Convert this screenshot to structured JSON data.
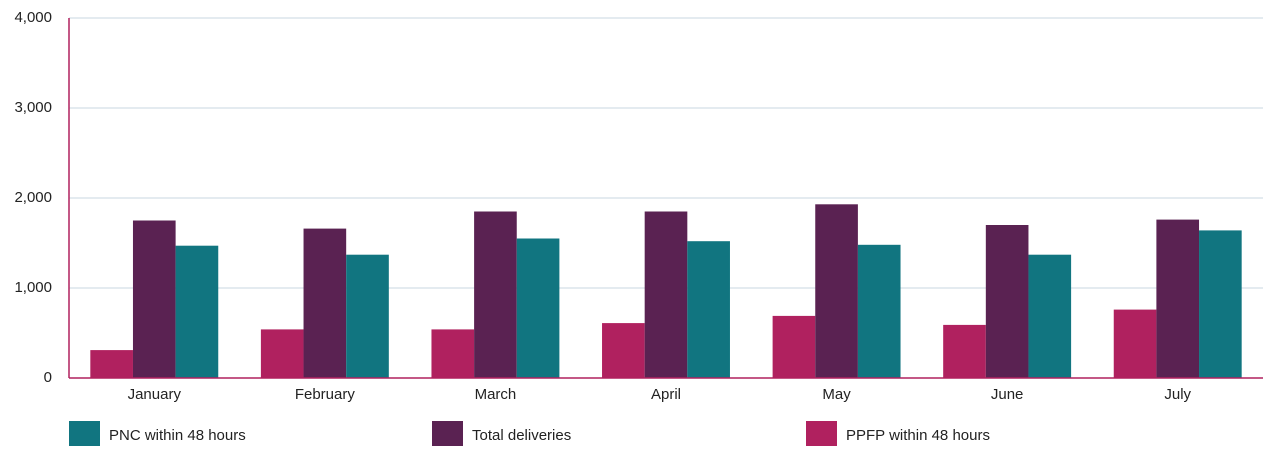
{
  "chart_data": {
    "type": "bar",
    "categories": [
      "January",
      "February",
      "March",
      "April",
      "May",
      "June",
      "July"
    ],
    "series": [
      {
        "name": "PPFP within 48 hours",
        "color": "#b0215f",
        "values": [
          310,
          540,
          540,
          610,
          690,
          590,
          760
        ]
      },
      {
        "name": "Total deliveries",
        "color": "#5a2252",
        "values": [
          1750,
          1660,
          1850,
          1850,
          1930,
          1700,
          1760
        ]
      },
      {
        "name": "PNC within 48 hours",
        "color": "#117580",
        "values": [
          1470,
          1370,
          1550,
          1520,
          1480,
          1370,
          1640
        ]
      }
    ],
    "legend_order": [
      "PNC within 48 hours",
      "Total deliveries",
      "PPFP within 48 hours"
    ],
    "ylim": [
      0,
      4000
    ],
    "yticks": [
      0,
      {
        "value": 1000,
        "label": "1,000"
      },
      {
        "value": 2000,
        "label": "2,000"
      },
      {
        "value": 3000,
        "label": "3,000"
      },
      {
        "value": 4000,
        "label": "4,000"
      }
    ],
    "grid": true,
    "legend": "bottom"
  }
}
